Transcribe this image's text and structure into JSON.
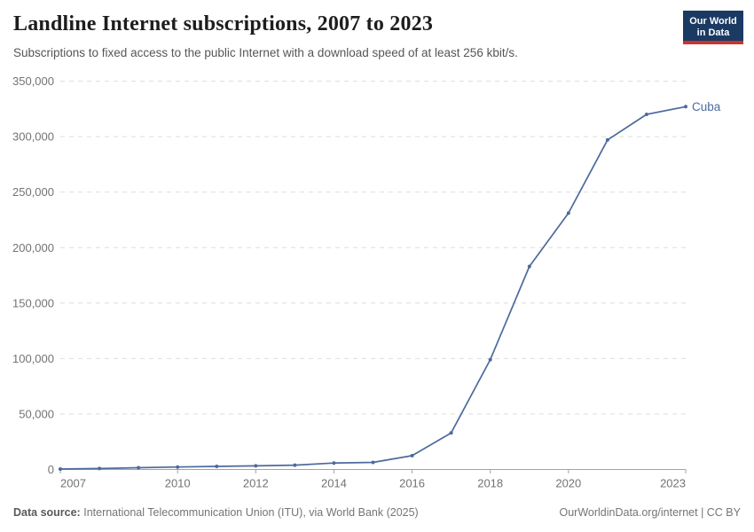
{
  "header": {
    "title": "Landline Internet subscriptions, 2007 to 2023",
    "subtitle": "Subscriptions to fixed access to the public Internet with a download speed of at least 256 kbit/s.",
    "logo": {
      "line1": "Our World",
      "line2": "in Data"
    }
  },
  "chart_data": {
    "type": "line",
    "title": "Landline Internet subscriptions, 2007 to 2023",
    "subtitle": "Subscriptions to fixed access to the public Internet with a download speed of at least 256 kbit/s.",
    "x": [
      2007,
      2008,
      2009,
      2010,
      2011,
      2012,
      2013,
      2014,
      2015,
      2016,
      2017,
      2018,
      2019,
      2020,
      2021,
      2022,
      2023
    ],
    "series": [
      {
        "name": "Cuba",
        "color": "#4C6A9C",
        "values": [
          400,
          900,
          1600,
          2200,
          2800,
          3300,
          3900,
          5800,
          6400,
          12500,
          33000,
          99000,
          183000,
          231000,
          297000,
          320000,
          327000
        ]
      }
    ],
    "xlim": [
      2007,
      2023
    ],
    "ylim": [
      0,
      350000
    ],
    "xticks": [
      2007,
      2010,
      2012,
      2014,
      2016,
      2018,
      2020,
      2023
    ],
    "xtick_labels": [
      "2007",
      "2010",
      "2012",
      "2014",
      "2016",
      "2018",
      "2020",
      "2023"
    ],
    "yticks": [
      0,
      50000,
      100000,
      150000,
      200000,
      250000,
      300000,
      350000
    ],
    "ytick_labels": [
      "0",
      "50,000",
      "100,000",
      "150,000",
      "200,000",
      "250,000",
      "300,000",
      "350,000"
    ],
    "xlabel": "",
    "ylabel": "",
    "grid": "horizontal-dashed",
    "legend": "end-of-line-label"
  },
  "footer": {
    "source_label": "Data source:",
    "source_text": "International Telecommunication Union (ITU), via World Bank (2025)",
    "right_text": "OurWorldinData.org/internet | CC BY"
  },
  "colors": {
    "series_blue": "#4C6A9C",
    "grid": "#dedede",
    "axis": "#a3a3a3",
    "tick_text": "#737373",
    "logo_bg": "#1a3a63",
    "logo_accent": "#c9342f",
    "title_text": "#1d1d1d",
    "subtitle_text": "#565656"
  }
}
